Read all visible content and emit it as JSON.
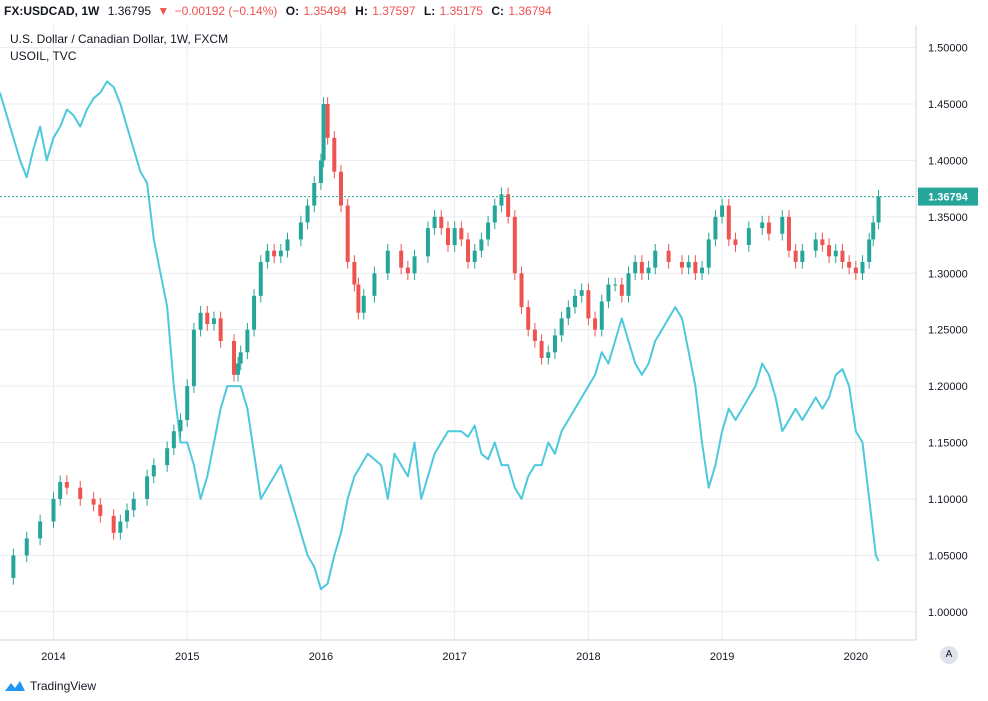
{
  "header": {
    "symbol": "FX:USDCAD, 1W",
    "last": "1.36795",
    "change_arrow": "▼",
    "change": "−0.00192 (−0.14%)",
    "o_label": "O:",
    "o_value": "1.35494",
    "h_label": "H:",
    "h_value": "1.37597",
    "l_label": "L:",
    "l_value": "1.35175",
    "c_label": "C:",
    "c_value": "1.36794"
  },
  "legend": {
    "main_series": "U.S. Dollar / Canadian Dollar, 1W, FXCM",
    "overlay_series": "USOIL, TVC"
  },
  "footer": {
    "brand": "TradingView",
    "auto_scale_label": "A"
  },
  "colors": {
    "up": "#26a69a",
    "down": "#ef5350",
    "oil": "#4ec8dc",
    "grid": "#e9ecf1",
    "price_line": "#26a69a",
    "axis_text": "#131722"
  },
  "chart_data": {
    "type": "line",
    "title": "U.S. Dollar / Canadian Dollar, 1W, FXCM",
    "xlabel": "",
    "ylabel": "",
    "xlim": [
      2013.6,
      2020.45
    ],
    "ylim": [
      0.975,
      1.52
    ],
    "x_ticks": [
      2014,
      2015,
      2016,
      2017,
      2018,
      2019,
      2020
    ],
    "x_tick_labels": [
      "2014",
      "2015",
      "2016",
      "2017",
      "2018",
      "2019",
      "2020"
    ],
    "y_ticks": [
      1.0,
      1.05,
      1.1,
      1.15,
      1.2,
      1.25,
      1.3,
      1.35,
      1.4,
      1.45,
      1.5
    ],
    "y_tick_labels": [
      "1.00000",
      "1.05000",
      "1.10000",
      "1.15000",
      "1.20000",
      "1.25000",
      "1.30000",
      "1.35000",
      "1.40000",
      "1.45000",
      "1.50000"
    ],
    "current_price": 1.36794,
    "current_price_label": "1.36794",
    "series": [
      {
        "name": "USDCAD",
        "style": "candlestick-approx",
        "x": [
          2013.6,
          2013.7,
          2013.8,
          2013.9,
          2014.0,
          2014.05,
          2014.1,
          2014.2,
          2014.3,
          2014.35,
          2014.45,
          2014.5,
          2014.55,
          2014.6,
          2014.7,
          2014.75,
          2014.85,
          2014.9,
          2014.95,
          2015.0,
          2015.05,
          2015.1,
          2015.15,
          2015.2,
          2015.25,
          2015.35,
          2015.38,
          2015.4,
          2015.45,
          2015.5,
          2015.55,
          2015.6,
          2015.65,
          2015.7,
          2015.75,
          2015.85,
          2015.9,
          2015.95,
          2016.0,
          2016.02,
          2016.05,
          2016.1,
          2016.15,
          2016.2,
          2016.25,
          2016.28,
          2016.32,
          2016.4,
          2016.5,
          2016.6,
          2016.65,
          2016.7,
          2016.8,
          2016.85,
          2016.9,
          2016.95,
          2017.0,
          2017.05,
          2017.1,
          2017.15,
          2017.2,
          2017.25,
          2017.3,
          2017.35,
          2017.4,
          2017.45,
          2017.5,
          2017.55,
          2017.6,
          2017.65,
          2017.7,
          2017.75,
          2017.8,
          2017.85,
          2017.9,
          2017.95,
          2018.0,
          2018.05,
          2018.1,
          2018.15,
          2018.2,
          2018.25,
          2018.3,
          2018.35,
          2018.4,
          2018.45,
          2018.5,
          2018.6,
          2018.7,
          2018.75,
          2018.8,
          2018.85,
          2018.9,
          2018.95,
          2019.0,
          2019.05,
          2019.1,
          2019.2,
          2019.3,
          2019.35,
          2019.45,
          2019.5,
          2019.55,
          2019.6,
          2019.7,
          2019.75,
          2019.8,
          2019.85,
          2019.9,
          2019.95,
          2020.0,
          2020.05,
          2020.1,
          2020.13,
          2020.17
        ],
        "values": [
          1.03,
          1.05,
          1.065,
          1.08,
          1.1,
          1.115,
          1.11,
          1.1,
          1.095,
          1.085,
          1.07,
          1.08,
          1.09,
          1.1,
          1.12,
          1.13,
          1.145,
          1.16,
          1.17,
          1.2,
          1.25,
          1.265,
          1.255,
          1.26,
          1.24,
          1.21,
          1.22,
          1.23,
          1.25,
          1.28,
          1.31,
          1.32,
          1.315,
          1.32,
          1.33,
          1.345,
          1.36,
          1.38,
          1.4,
          1.45,
          1.42,
          1.39,
          1.36,
          1.31,
          1.29,
          1.265,
          1.28,
          1.3,
          1.32,
          1.305,
          1.3,
          1.315,
          1.34,
          1.35,
          1.34,
          1.325,
          1.34,
          1.33,
          1.31,
          1.32,
          1.33,
          1.345,
          1.36,
          1.37,
          1.35,
          1.3,
          1.27,
          1.25,
          1.24,
          1.225,
          1.23,
          1.245,
          1.26,
          1.27,
          1.28,
          1.285,
          1.26,
          1.25,
          1.275,
          1.29,
          1.29,
          1.28,
          1.3,
          1.31,
          1.3,
          1.305,
          1.32,
          1.31,
          1.305,
          1.31,
          1.3,
          1.305,
          1.33,
          1.35,
          1.36,
          1.33,
          1.325,
          1.34,
          1.345,
          1.335,
          1.35,
          1.32,
          1.31,
          1.32,
          1.33,
          1.325,
          1.315,
          1.32,
          1.31,
          1.305,
          1.3,
          1.31,
          1.33,
          1.345,
          1.36794
        ]
      },
      {
        "name": "USOIL",
        "style": "line",
        "x": [
          2013.6,
          2013.65,
          2013.75,
          2013.8,
          2013.85,
          2013.9,
          2013.95,
          2014.0,
          2014.05,
          2014.1,
          2014.15,
          2014.2,
          2014.25,
          2014.3,
          2014.35,
          2014.4,
          2014.45,
          2014.5,
          2014.55,
          2014.6,
          2014.65,
          2014.7,
          2014.75,
          2014.8,
          2014.85,
          2014.9,
          2014.95,
          2015.0,
          2015.05,
          2015.1,
          2015.15,
          2015.2,
          2015.25,
          2015.3,
          2015.35,
          2015.4,
          2015.45,
          2015.5,
          2015.55,
          2015.6,
          2015.65,
          2015.7,
          2015.75,
          2015.8,
          2015.85,
          2015.9,
          2015.95,
          2016.0,
          2016.05,
          2016.1,
          2016.15,
          2016.2,
          2016.25,
          2016.3,
          2016.35,
          2016.4,
          2016.45,
          2016.5,
          2016.55,
          2016.6,
          2016.65,
          2016.7,
          2016.75,
          2016.8,
          2016.85,
          2016.9,
          2016.95,
          2017.0,
          2017.05,
          2017.1,
          2017.15,
          2017.2,
          2017.25,
          2017.3,
          2017.35,
          2017.4,
          2017.45,
          2017.5,
          2017.55,
          2017.6,
          2017.65,
          2017.7,
          2017.75,
          2017.8,
          2017.85,
          2017.9,
          2017.95,
          2018.0,
          2018.05,
          2018.1,
          2018.15,
          2018.2,
          2018.25,
          2018.3,
          2018.35,
          2018.4,
          2018.45,
          2018.5,
          2018.55,
          2018.6,
          2018.65,
          2018.7,
          2018.75,
          2018.8,
          2018.85,
          2018.9,
          2018.95,
          2019.0,
          2019.05,
          2019.1,
          2019.15,
          2019.2,
          2019.25,
          2019.3,
          2019.35,
          2019.4,
          2019.45,
          2019.5,
          2019.55,
          2019.6,
          2019.65,
          2019.7,
          2019.75,
          2019.8,
          2019.85,
          2019.9,
          2019.95,
          2020.0,
          2020.05,
          2020.1,
          2020.15,
          2020.17
        ],
        "values": [
          1.46,
          1.44,
          1.4,
          1.385,
          1.41,
          1.43,
          1.4,
          1.42,
          1.43,
          1.445,
          1.44,
          1.43,
          1.445,
          1.455,
          1.46,
          1.47,
          1.465,
          1.45,
          1.43,
          1.41,
          1.39,
          1.38,
          1.33,
          1.3,
          1.27,
          1.2,
          1.15,
          1.15,
          1.13,
          1.1,
          1.12,
          1.15,
          1.18,
          1.2,
          1.2,
          1.2,
          1.18,
          1.14,
          1.1,
          1.11,
          1.12,
          1.13,
          1.11,
          1.09,
          1.07,
          1.05,
          1.04,
          1.02,
          1.025,
          1.05,
          1.07,
          1.1,
          1.12,
          1.13,
          1.14,
          1.135,
          1.13,
          1.1,
          1.14,
          1.13,
          1.12,
          1.15,
          1.1,
          1.12,
          1.14,
          1.15,
          1.16,
          1.16,
          1.16,
          1.155,
          1.165,
          1.14,
          1.135,
          1.15,
          1.13,
          1.13,
          1.11,
          1.1,
          1.12,
          1.13,
          1.13,
          1.15,
          1.14,
          1.16,
          1.17,
          1.18,
          1.19,
          1.2,
          1.21,
          1.23,
          1.22,
          1.24,
          1.26,
          1.24,
          1.22,
          1.21,
          1.22,
          1.24,
          1.25,
          1.26,
          1.27,
          1.26,
          1.23,
          1.2,
          1.15,
          1.11,
          1.13,
          1.16,
          1.18,
          1.17,
          1.18,
          1.19,
          1.2,
          1.22,
          1.21,
          1.19,
          1.16,
          1.17,
          1.18,
          1.17,
          1.18,
          1.19,
          1.18,
          1.19,
          1.21,
          1.215,
          1.2,
          1.16,
          1.15,
          1.1,
          1.05,
          1.045
        ]
      }
    ]
  }
}
